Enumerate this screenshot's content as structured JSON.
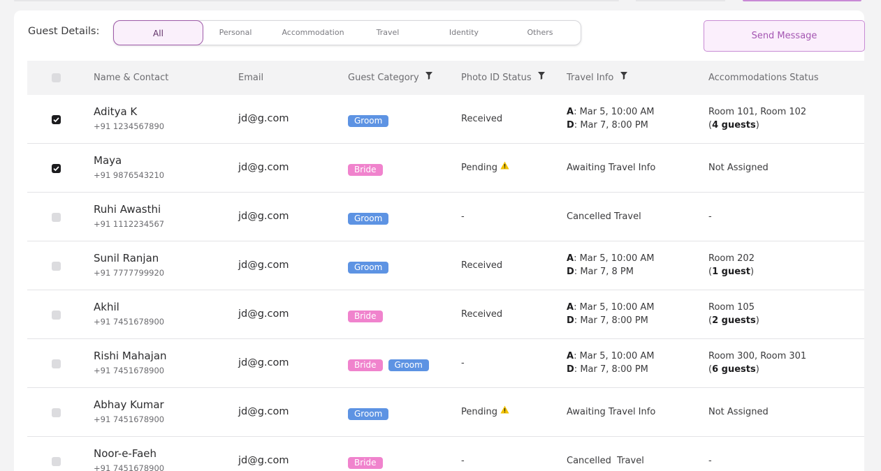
{
  "filters": {
    "label": "Guest Details:",
    "tabs": [
      "All",
      "Personal",
      "Accommodation",
      "Travel",
      "Identity",
      "Others"
    ],
    "active": "All"
  },
  "actions": {
    "send_message": "Send Message"
  },
  "table": {
    "headers": {
      "name": "Name & Contact",
      "email": "Email",
      "category": "Guest Category",
      "photo": "Photo ID Status",
      "travel": "Travel Info",
      "accom": "Accommodations Status"
    },
    "rows": [
      {
        "checked": true,
        "name": "Aditya K",
        "phone": "+91 1234567890",
        "email": "jd@g.com",
        "tags": [
          "Groom"
        ],
        "photo": "Received",
        "photo_warn": false,
        "travel_arrival": "Mar 5, 10:00 AM",
        "travel_departure": "Mar 7, 8:00 PM",
        "travel_text": "",
        "accom_room": "Room 101, Room 102",
        "accom_guests": "4 guests",
        "accom_text": ""
      },
      {
        "checked": true,
        "name": "Maya",
        "phone": "+91 9876543210",
        "email": "jd@g.com",
        "tags": [
          "Bride"
        ],
        "photo": "Pending",
        "photo_warn": true,
        "travel_arrival": "",
        "travel_departure": "",
        "travel_text": "Awaiting Travel Info",
        "accom_room": "",
        "accom_guests": "",
        "accom_text": "Not Assigned"
      },
      {
        "checked": false,
        "name": "Ruhi Awasthi",
        "phone": "+91 1112234567",
        "email": "jd@g.com",
        "tags": [
          "Groom"
        ],
        "photo": "-",
        "photo_warn": false,
        "travel_arrival": "",
        "travel_departure": "",
        "travel_text": "Cancelled Travel",
        "accom_room": "",
        "accom_guests": "",
        "accom_text": "-"
      },
      {
        "checked": false,
        "name": "Sunil Ranjan",
        "phone": "+91 7777799920",
        "email": "jd@g.com",
        "tags": [
          "Groom"
        ],
        "photo": "Received",
        "photo_warn": false,
        "travel_arrival": "Mar 5, 10:00 AM",
        "travel_departure": "Mar 7, 8 PM",
        "travel_text": "",
        "accom_room": "Room 202",
        "accom_guests": "1 guest",
        "accom_text": ""
      },
      {
        "checked": false,
        "name": "Akhil",
        "phone": "+91 7451678900",
        "email": "jd@g.com",
        "tags": [
          "Bride"
        ],
        "photo": "Received",
        "photo_warn": false,
        "travel_arrival": "Mar 5, 10:00 AM",
        "travel_departure": "Mar 7, 8:00 PM",
        "travel_text": "",
        "accom_room": "Room 105",
        "accom_guests": "2 guests",
        "accom_text": ""
      },
      {
        "checked": false,
        "name": "Rishi Mahajan",
        "phone": "+91 7451678900",
        "email": "jd@g.com",
        "tags": [
          "Bride",
          "Groom"
        ],
        "photo": "-",
        "photo_warn": false,
        "travel_arrival": "Mar 5, 10:00 AM",
        "travel_departure": "Mar 7, 8:00 PM",
        "travel_text": "",
        "accom_room": "Room 300, Room 301",
        "accom_guests": "6 guests",
        "accom_text": ""
      },
      {
        "checked": false,
        "name": "Abhay Kumar",
        "phone": "+91 7451678900",
        "email": "jd@g.com",
        "tags": [
          "Groom"
        ],
        "photo": "Pending",
        "photo_warn": true,
        "travel_arrival": "",
        "travel_departure": "",
        "travel_text": "Awaiting Travel Info",
        "accom_room": "",
        "accom_guests": "",
        "accom_text": "Not Assigned"
      },
      {
        "checked": false,
        "name": "Noor-e-Faeh",
        "phone": "+91 7451678900",
        "email": "jd@g.com",
        "tags": [
          "Bride"
        ],
        "photo": "-",
        "photo_warn": false,
        "travel_arrival": "",
        "travel_departure": "",
        "travel_text": "Cancelled  Travel",
        "accom_room": "",
        "accom_guests": "",
        "accom_text": "-"
      }
    ],
    "labels": {
      "arrival": "A",
      "departure": "D"
    }
  },
  "colors": {
    "accent": "#9e5aa8",
    "groom": "#5d93e3",
    "bride": "#f083cd",
    "warning": "#f2c200"
  }
}
